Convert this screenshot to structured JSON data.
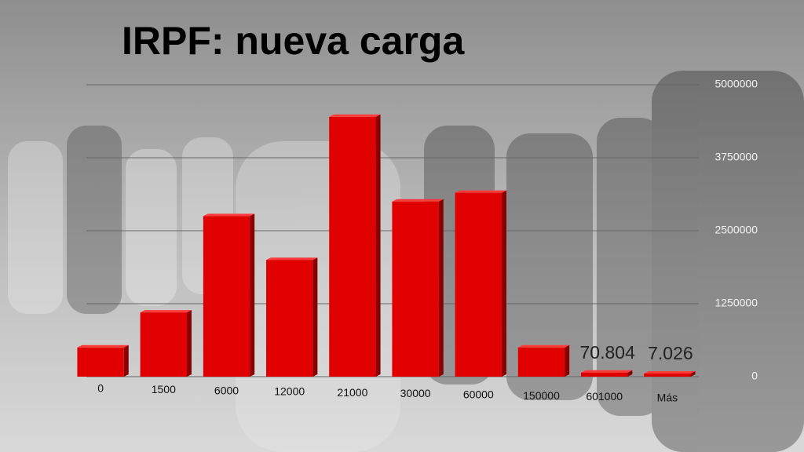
{
  "chart_data": {
    "type": "bar",
    "title": "IRPF: nueva carga",
    "categories": [
      "0",
      "1500",
      "6000",
      "12000",
      "21000",
      "30000",
      "60000",
      "150000",
      "601000",
      "Más"
    ],
    "values": [
      500000,
      1100000,
      2750000,
      2000000,
      4450000,
      3000000,
      3150000,
      500000,
      70804,
      7026
    ],
    "value_labels": [
      null,
      null,
      null,
      null,
      null,
      null,
      null,
      null,
      "70.804",
      "7.026"
    ],
    "color": "#e00000",
    "ylim": [
      0,
      5000000
    ],
    "yticks": [
      0,
      1250000,
      2500000,
      3750000,
      5000000
    ],
    "grid": true
  }
}
